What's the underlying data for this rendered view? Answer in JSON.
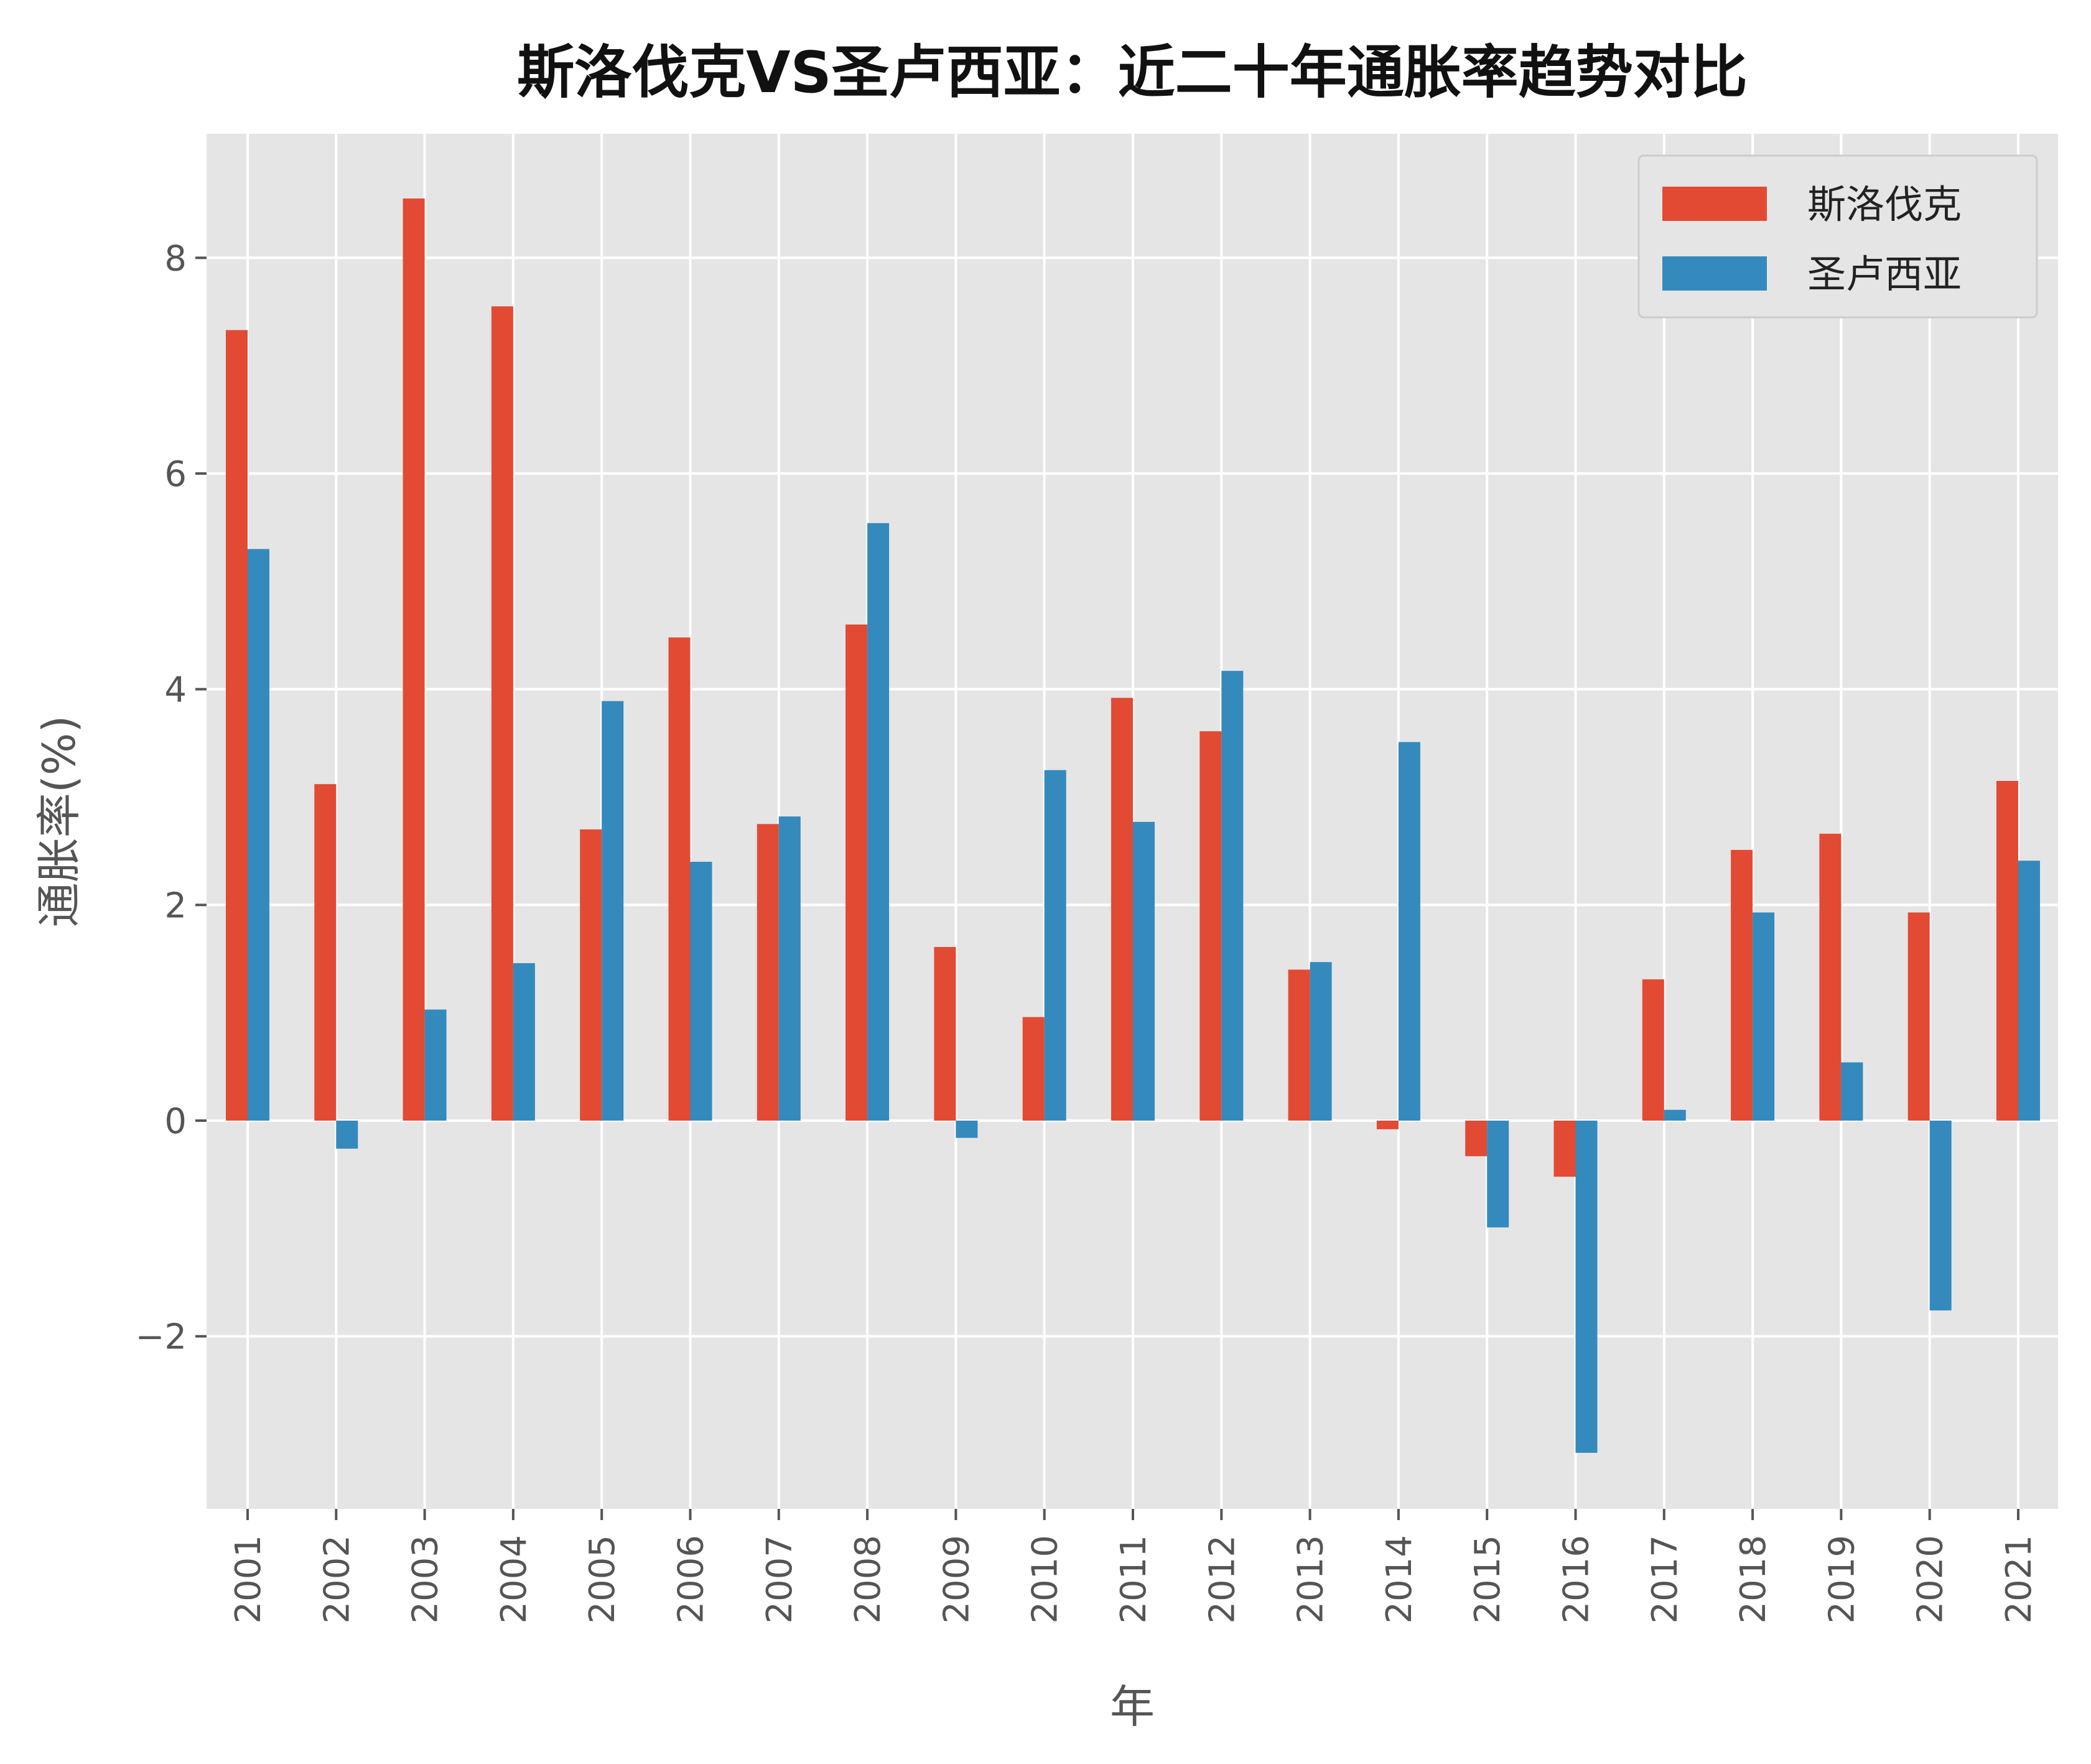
{
  "chart_data": {
    "type": "bar",
    "title": "斯洛伐克VS圣卢西亚：近二十年通胀率趋势对比",
    "xlabel": "年",
    "ylabel": "通胀率(%)",
    "categories": [
      "2001",
      "2002",
      "2003",
      "2004",
      "2005",
      "2006",
      "2007",
      "2008",
      "2009",
      "2010",
      "2011",
      "2012",
      "2013",
      "2014",
      "2015",
      "2016",
      "2017",
      "2018",
      "2019",
      "2020",
      "2021"
    ],
    "series": [
      {
        "name": "斯洛伐克",
        "color": "#E24A33",
        "values": [
          7.33,
          3.12,
          8.55,
          7.55,
          2.7,
          4.48,
          2.75,
          4.6,
          1.61,
          0.96,
          3.92,
          3.61,
          1.4,
          -0.08,
          -0.33,
          -0.52,
          1.31,
          2.51,
          2.66,
          1.93,
          3.15
        ]
      },
      {
        "name": "圣卢西亚",
        "color": "#348ABD",
        "values": [
          5.3,
          -0.26,
          1.03,
          1.46,
          3.89,
          2.4,
          2.82,
          5.54,
          -0.16,
          3.25,
          2.77,
          4.17,
          1.47,
          3.51,
          -0.99,
          -3.08,
          0.1,
          1.93,
          0.54,
          -1.76,
          2.41
        ]
      }
    ],
    "ylim": [
      -3.6,
      9.15
    ],
    "yticks": [
      -2,
      0,
      2,
      4,
      6,
      8
    ],
    "ytick_labels": [
      "−2",
      "0",
      "2",
      "4",
      "6",
      "8"
    ],
    "grid": true,
    "legend": "top-right"
  }
}
